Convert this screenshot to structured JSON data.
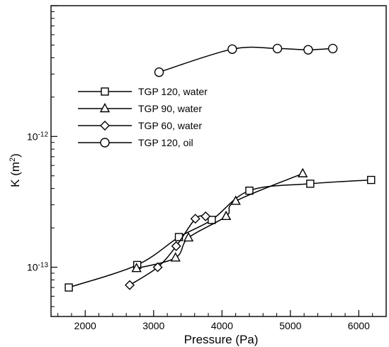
{
  "chart_data": {
    "type": "line",
    "title": "",
    "xlabel": "Pressure (Pa)",
    "ylabel": {
      "base": "K (m",
      "sup": "2",
      "close": ")"
    },
    "xlim": [
      1500,
      6400
    ],
    "x_ticks": [
      2000,
      3000,
      4000,
      5000,
      6000
    ],
    "y_scale": "log",
    "ylim": [
      4.2e-14,
      1e-11
    ],
    "y_ticks": [
      {
        "value": 1e-13,
        "base": "10",
        "exp": "-13"
      },
      {
        "value": 1e-12,
        "base": "10",
        "exp": "-12"
      }
    ],
    "grid": false,
    "legend": "upper-left",
    "series": [
      {
        "name": "TGP 120, water",
        "marker": "square",
        "x": [
          1760,
          2760,
          3370,
          3850,
          4400,
          5290,
          6180
        ],
        "y": [
          7e-14,
          1.04e-13,
          1.7e-13,
          2.3e-13,
          3.85e-13,
          4.35e-13,
          4.65e-13
        ]
      },
      {
        "name": "TGP 90, water",
        "marker": "triangle",
        "x": [
          2750,
          3320,
          3510,
          4060,
          4200,
          5180
        ],
        "y": [
          9.8e-14,
          1.18e-13,
          1.68e-13,
          2.45e-13,
          3.2e-13,
          5.2e-13
        ]
      },
      {
        "name": "TGP 60, water",
        "marker": "diamond",
        "x": [
          2650,
          3060,
          3330,
          3610,
          3760
        ],
        "y": [
          7.3e-14,
          1e-13,
          1.45e-13,
          2.35e-13,
          2.45e-13
        ]
      },
      {
        "name": "TGP 120, oil",
        "marker": "circle",
        "x": [
          3080,
          4150,
          4810,
          5260,
          5620
        ],
        "y": [
          3.1e-12,
          4.65e-12,
          4.7e-12,
          4.6e-12,
          4.7e-12
        ]
      }
    ]
  }
}
